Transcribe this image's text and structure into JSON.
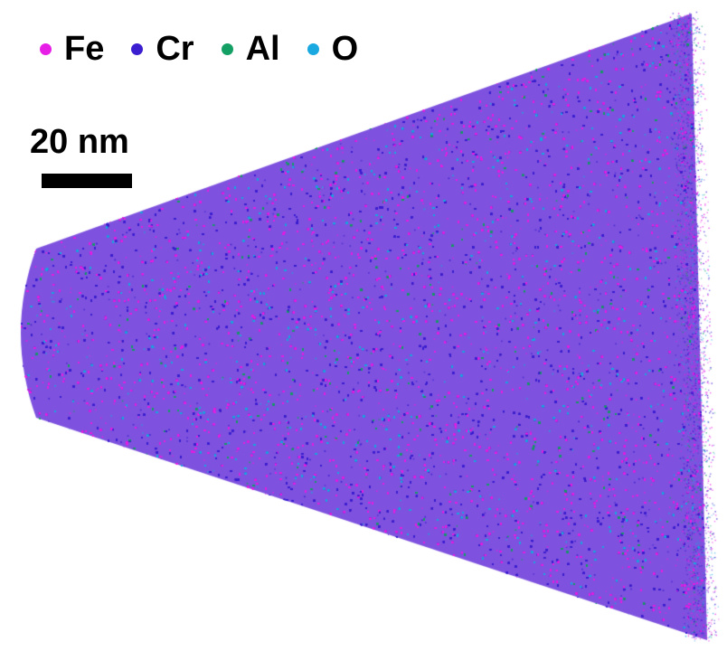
{
  "legend": {
    "items": [
      {
        "label": "Fe",
        "color": "#e61ee6",
        "icon": "dot-icon"
      },
      {
        "label": "Cr",
        "color": "#3a1ed0",
        "icon": "dot-icon"
      },
      {
        "label": "Al",
        "color": "#14a064",
        "icon": "dot-icon"
      },
      {
        "label": "O",
        "color": "#19a8e0",
        "icon": "dot-icon"
      }
    ]
  },
  "scale_bar": {
    "label": "20 nm"
  },
  "reconstruction": {
    "background_color": "#7e52de",
    "species": [
      {
        "name": "Fe",
        "color": "#e61ee6"
      },
      {
        "name": "Cr",
        "color": "#3a1ed0"
      },
      {
        "name": "Al",
        "color": "#14a064"
      },
      {
        "name": "O",
        "color": "#19a8e0"
      }
    ]
  }
}
